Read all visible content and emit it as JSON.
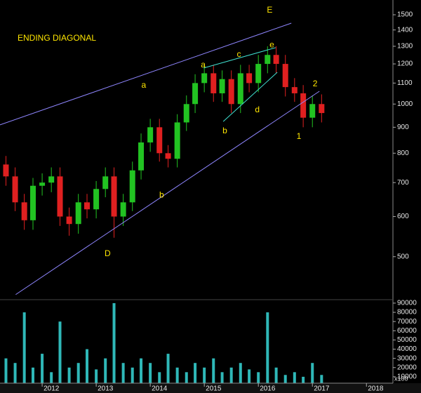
{
  "chart_data": [
    {
      "type": "candlestick",
      "title": "ENDING DIAGONAL",
      "title_color": "#ffe600",
      "log_scale": true,
      "grid": false,
      "x": [
        2011.33,
        2011.5,
        2011.67,
        2011.83,
        2012.0,
        2012.17,
        2012.33,
        2012.5,
        2012.67,
        2012.83,
        2013.0,
        2013.17,
        2013.33,
        2013.5,
        2013.67,
        2013.83,
        2014.0,
        2014.17,
        2014.33,
        2014.5,
        2014.67,
        2014.83,
        2015.0,
        2015.17,
        2015.33,
        2015.5,
        2015.67,
        2015.83,
        2016.0,
        2016.17,
        2016.33,
        2016.5,
        2016.67,
        2016.83,
        2017.0,
        2017.17
      ],
      "open": [
        760,
        720,
        640,
        590,
        690,
        700,
        720,
        600,
        580,
        640,
        620,
        680,
        720,
        600,
        640,
        740,
        840,
        900,
        800,
        780,
        920,
        1000,
        1100,
        1150,
        1050,
        1120,
        1000,
        1150,
        1100,
        1200,
        1250,
        1200,
        1080,
        1050,
        940,
        1000
      ],
      "high": [
        790,
        750,
        665,
        715,
        730,
        750,
        750,
        625,
        665,
        665,
        705,
        750,
        750,
        665,
        770,
        875,
        935,
        935,
        830,
        955,
        1040,
        1145,
        1195,
        1195,
        1165,
        1165,
        1195,
        1195,
        1250,
        1300,
        1300,
        1250,
        1125,
        1090,
        1040,
        1045
      ],
      "low": [
        690,
        615,
        565,
        565,
        660,
        670,
        575,
        550,
        555,
        595,
        595,
        655,
        545,
        575,
        615,
        710,
        805,
        770,
        750,
        750,
        885,
        960,
        1055,
        1010,
        1010,
        960,
        960,
        1055,
        1055,
        1150,
        1150,
        1035,
        1010,
        900,
        900,
        920
      ],
      "close": [
        720,
        640,
        590,
        690,
        700,
        720,
        600,
        580,
        640,
        620,
        680,
        720,
        600,
        640,
        740,
        840,
        900,
        800,
        780,
        920,
        1000,
        1100,
        1150,
        1050,
        1120,
        1000,
        1150,
        1100,
        1200,
        1250,
        1200,
        1080,
        1050,
        940,
        1000,
        960
      ],
      "up_color": "#22c322",
      "down_color": "#e02020",
      "xlim": [
        2011.22,
        2018.49
      ],
      "xticks": [
        2012,
        2013,
        2014,
        2015,
        2016,
        2017,
        2018
      ],
      "ylim": [
        414,
        1604
      ],
      "yticks": [
        500,
        600,
        700,
        800,
        900,
        1000,
        1100,
        1200,
        1300,
        1400,
        1500
      ],
      "trendlines": [
        {
          "x": [
            2011.22,
            2016.61
          ],
          "y": [
            910,
            1444
          ],
          "color": "#8f86ff"
        },
        {
          "x": [
            2011.51,
            2017.13
          ],
          "y": [
            421,
            1060
          ],
          "color": "#8f86ff"
        },
        {
          "x": [
            2014.99,
            2016.32
          ],
          "y": [
            1178,
            1292
          ],
          "color": "#3fe0d0"
        },
        {
          "x": [
            2015.35,
            2016.35
          ],
          "y": [
            924,
            1155
          ],
          "color": "#3fe0d0"
        }
      ],
      "annotations": [
        {
          "text": "E",
          "x": 2016.21,
          "y": 1529
        },
        {
          "text": "a",
          "x": 2013.88,
          "y": 1088
        },
        {
          "text": "a",
          "x": 2014.98,
          "y": 1194
        },
        {
          "text": "c",
          "x": 2015.64,
          "y": 1251
        },
        {
          "text": "e",
          "x": 2016.25,
          "y": 1306
        },
        {
          "text": "b",
          "x": 2015.38,
          "y": 884
        },
        {
          "text": "d",
          "x": 2015.98,
          "y": 973
        },
        {
          "text": "1",
          "x": 2016.75,
          "y": 862
        },
        {
          "text": "2",
          "x": 2017.05,
          "y": 1094
        },
        {
          "text": "b",
          "x": 2014.21,
          "y": 661
        },
        {
          "text": "D",
          "x": 2013.21,
          "y": 506
        }
      ]
    },
    {
      "type": "bar",
      "unit_label": "x100",
      "color": "#2fb8b8",
      "x": [
        2011.33,
        2011.5,
        2011.67,
        2011.83,
        2012.0,
        2012.17,
        2012.33,
        2012.5,
        2012.67,
        2012.83,
        2013.0,
        2013.17,
        2013.33,
        2013.5,
        2013.67,
        2013.83,
        2014.0,
        2014.17,
        2014.33,
        2014.5,
        2014.67,
        2014.83,
        2015.0,
        2015.17,
        2015.33,
        2015.5,
        2015.67,
        2015.83,
        2016.0,
        2016.17,
        2016.33,
        2016.5,
        2016.67,
        2016.83,
        2017.0,
        2017.17
      ],
      "values": [
        30000,
        25000,
        80000,
        20000,
        35000,
        15000,
        70000,
        20000,
        25000,
        40000,
        18000,
        30000,
        90000,
        25000,
        20000,
        30000,
        25000,
        15000,
        35000,
        20000,
        15000,
        25000,
        20000,
        30000,
        15000,
        20000,
        25000,
        18000,
        15000,
        80000,
        20000,
        12000,
        15000,
        10000,
        25000,
        12000
      ],
      "ylim": [
        0,
        93000
      ],
      "yticks": [
        10000,
        20000,
        30000,
        40000,
        50000,
        60000,
        70000,
        80000,
        90000
      ]
    }
  ]
}
